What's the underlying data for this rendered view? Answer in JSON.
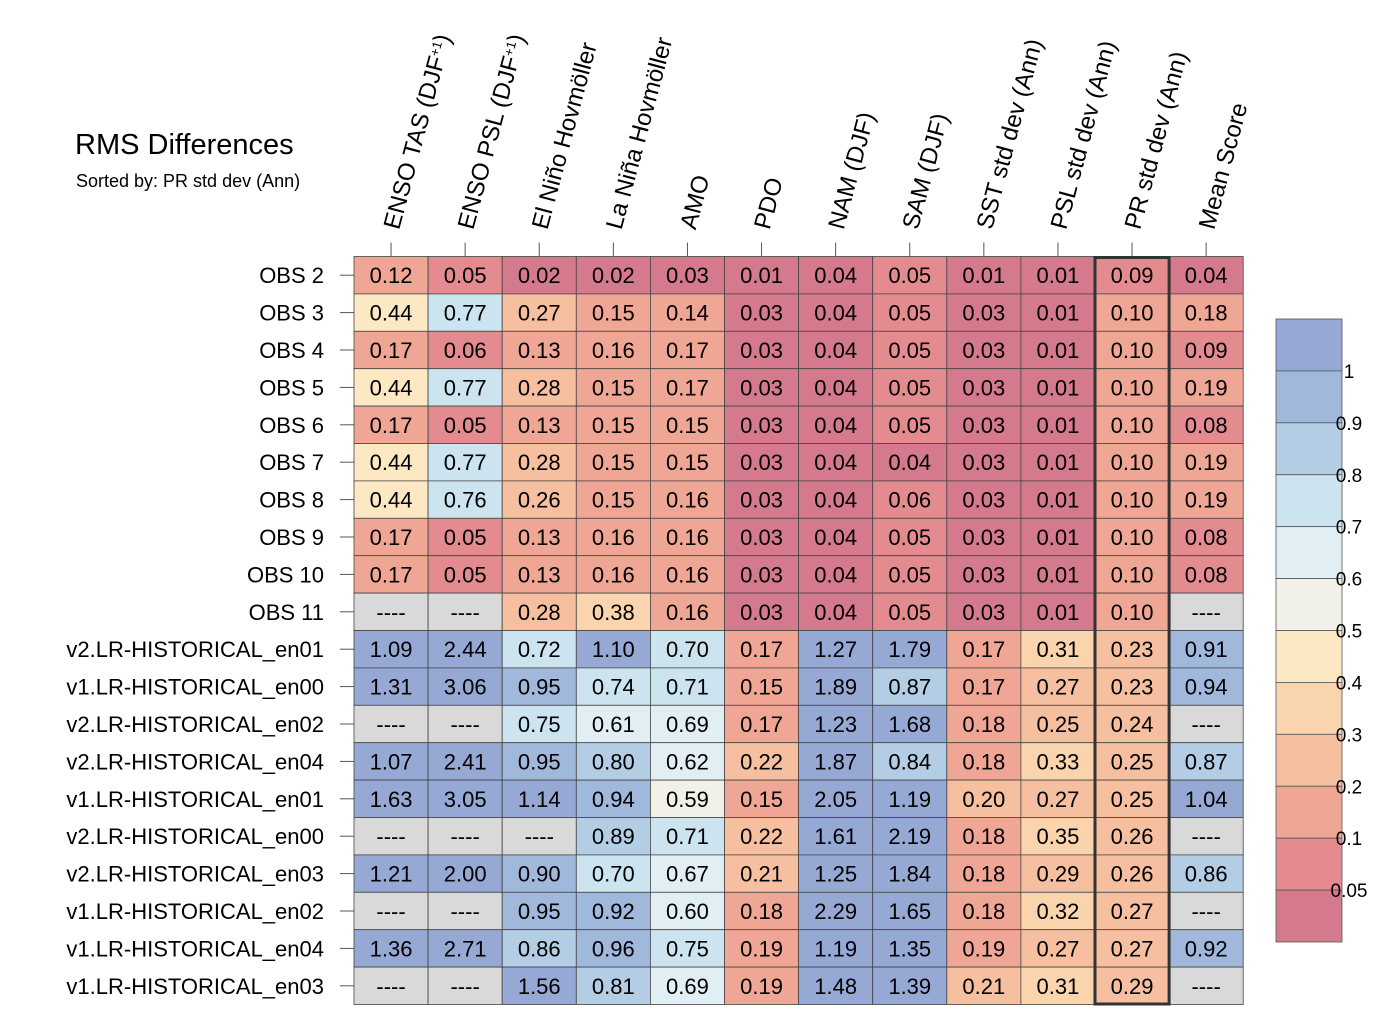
{
  "chart_data": {
    "type": "heatmap",
    "title": "RMS Differences",
    "subtitle": "Sorted by: PR std dev (Ann)",
    "columns": [
      "ENSO TAS (DJF+1)",
      "ENSO PSL (DJF+1)",
      "El Niño Hovmöller",
      "La Niña Hovmöller",
      "AMO",
      "PDO",
      "NAM (DJF)",
      "SAM (DJF)",
      "SST std dev (Ann)",
      "PSL std dev (Ann)",
      "PR std dev (Ann)",
      "Mean Score"
    ],
    "highlighted_column": "PR std dev (Ann)",
    "rows": [
      "OBS 2",
      "OBS 3",
      "OBS 4",
      "OBS 5",
      "OBS 6",
      "OBS 7",
      "OBS 8",
      "OBS 9",
      "OBS 10",
      "OBS 11",
      "v2.LR-HISTORICAL_en01",
      "v1.LR-HISTORICAL_en00",
      "v2.LR-HISTORICAL_en02",
      "v2.LR-HISTORICAL_en04",
      "v1.LR-HISTORICAL_en01",
      "v2.LR-HISTORICAL_en00",
      "v2.LR-HISTORICAL_en03",
      "v1.LR-HISTORICAL_en02",
      "v1.LR-HISTORICAL_en04",
      "v1.LR-HISTORICAL_en03"
    ],
    "values": [
      [
        "0.12",
        "0.05",
        "0.02",
        "0.02",
        "0.03",
        "0.01",
        "0.04",
        "0.05",
        "0.01",
        "0.01",
        "0.09",
        "0.04"
      ],
      [
        "0.44",
        "0.77",
        "0.27",
        "0.15",
        "0.14",
        "0.03",
        "0.04",
        "0.05",
        "0.03",
        "0.01",
        "0.10",
        "0.18"
      ],
      [
        "0.17",
        "0.06",
        "0.13",
        "0.16",
        "0.17",
        "0.03",
        "0.04",
        "0.05",
        "0.03",
        "0.01",
        "0.10",
        "0.09"
      ],
      [
        "0.44",
        "0.77",
        "0.28",
        "0.15",
        "0.17",
        "0.03",
        "0.04",
        "0.05",
        "0.03",
        "0.01",
        "0.10",
        "0.19"
      ],
      [
        "0.17",
        "0.05",
        "0.13",
        "0.15",
        "0.15",
        "0.03",
        "0.04",
        "0.05",
        "0.03",
        "0.01",
        "0.10",
        "0.08"
      ],
      [
        "0.44",
        "0.77",
        "0.28",
        "0.15",
        "0.15",
        "0.03",
        "0.04",
        "0.04",
        "0.03",
        "0.01",
        "0.10",
        "0.19"
      ],
      [
        "0.44",
        "0.76",
        "0.26",
        "0.15",
        "0.16",
        "0.03",
        "0.04",
        "0.06",
        "0.03",
        "0.01",
        "0.10",
        "0.19"
      ],
      [
        "0.17",
        "0.05",
        "0.13",
        "0.16",
        "0.16",
        "0.03",
        "0.04",
        "0.05",
        "0.03",
        "0.01",
        "0.10",
        "0.08"
      ],
      [
        "0.17",
        "0.05",
        "0.13",
        "0.16",
        "0.16",
        "0.03",
        "0.04",
        "0.05",
        "0.03",
        "0.01",
        "0.10",
        "0.08"
      ],
      [
        "----",
        "----",
        "0.28",
        "0.38",
        "0.16",
        "0.03",
        "0.04",
        "0.05",
        "0.03",
        "0.01",
        "0.10",
        "----"
      ],
      [
        "1.09",
        "2.44",
        "0.72",
        "1.10",
        "0.70",
        "0.17",
        "1.27",
        "1.79",
        "0.17",
        "0.31",
        "0.23",
        "0.91"
      ],
      [
        "1.31",
        "3.06",
        "0.95",
        "0.74",
        "0.71",
        "0.15",
        "1.89",
        "0.87",
        "0.17",
        "0.27",
        "0.23",
        "0.94"
      ],
      [
        "----",
        "----",
        "0.75",
        "0.61",
        "0.69",
        "0.17",
        "1.23",
        "1.68",
        "0.18",
        "0.25",
        "0.24",
        "----"
      ],
      [
        "1.07",
        "2.41",
        "0.95",
        "0.80",
        "0.62",
        "0.22",
        "1.87",
        "0.84",
        "0.18",
        "0.33",
        "0.25",
        "0.87"
      ],
      [
        "1.63",
        "3.05",
        "1.14",
        "0.94",
        "0.59",
        "0.15",
        "2.05",
        "1.19",
        "0.20",
        "0.27",
        "0.25",
        "1.04"
      ],
      [
        "----",
        "----",
        "----",
        "0.89",
        "0.71",
        "0.22",
        "1.61",
        "2.19",
        "0.18",
        "0.35",
        "0.26",
        "----"
      ],
      [
        "1.21",
        "2.00",
        "0.90",
        "0.70",
        "0.67",
        "0.21",
        "1.25",
        "1.84",
        "0.18",
        "0.29",
        "0.26",
        "0.86"
      ],
      [
        "----",
        "----",
        "0.95",
        "0.92",
        "0.60",
        "0.18",
        "2.29",
        "1.65",
        "0.18",
        "0.32",
        "0.27",
        "----"
      ],
      [
        "1.36",
        "2.71",
        "0.86",
        "0.96",
        "0.75",
        "0.19",
        "1.19",
        "1.35",
        "0.19",
        "0.27",
        "0.27",
        "0.92"
      ],
      [
        "----",
        "----",
        "1.56",
        "0.81",
        "0.69",
        "0.19",
        "1.48",
        "1.39",
        "0.21",
        "0.31",
        "0.29",
        "----"
      ]
    ],
    "missing_value": "----",
    "colorbar": {
      "labels": [
        "1",
        "0.9",
        "0.8",
        "0.7",
        "0.6",
        "0.5",
        "0.4",
        "0.3",
        "0.2",
        "0.1",
        "0.05"
      ],
      "levels": [
        0.05,
        0.1,
        0.2,
        0.3,
        0.4,
        0.5,
        0.6,
        0.7,
        0.8,
        0.9,
        1
      ],
      "colors": [
        "#d47a8c",
        "#e38b8f",
        "#f0a695",
        "#f6bf9f",
        "#fad4ac",
        "#fde8c4",
        "#f2f1e7",
        "#e1eff5",
        "#cbe4ef",
        "#b2cde4",
        "#9fb8db",
        "#95a9d4"
      ],
      "missing_color": "#d9d9d9"
    }
  }
}
